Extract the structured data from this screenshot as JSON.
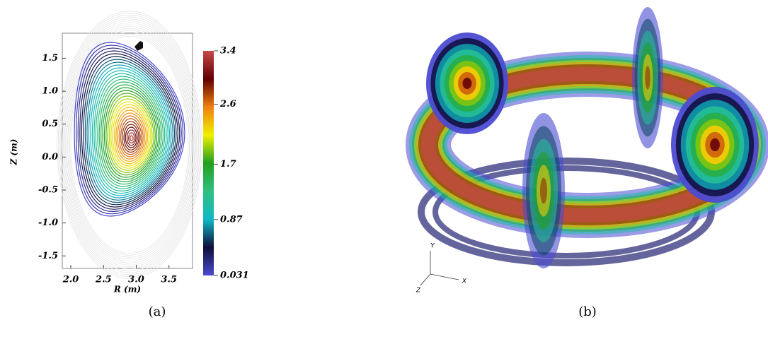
{
  "chart_data": [
    {
      "type": "contour",
      "xlabel": "R (m)",
      "ylabel": "Z (m)",
      "xlim": [
        1.87,
        3.86
      ],
      "xticks": [
        {
          "value": 2,
          "label": "2.0"
        },
        2.5,
        {
          "value": 3,
          "label": "3.0"
        },
        3.5
      ],
      "ylim": [
        -1.69,
        1.88
      ],
      "yticks": [
        1.5,
        {
          "value": 1,
          "label": "1.0"
        },
        0.5,
        {
          "value": 0,
          "label": "0.0"
        },
        -0.5,
        {
          "value": -1,
          "label": "-1.0"
        },
        -1.5
      ],
      "clim": [
        0.031,
        3.4
      ],
      "cticks": [
        0.031,
        0.87,
        1.7,
        2.6,
        3.4
      ],
      "colormap": [
        "#4b4bd2",
        "#0e0e3a",
        "#10b8c8",
        "#30c080",
        "#20a020",
        "#f0f000",
        "#f08010",
        "#600000",
        "#c84848"
      ],
      "caption": "(a)"
    },
    {
      "type": "3d-render",
      "axis_labels": [
        "Y",
        "X",
        "Z"
      ],
      "caption": "(b)"
    }
  ]
}
